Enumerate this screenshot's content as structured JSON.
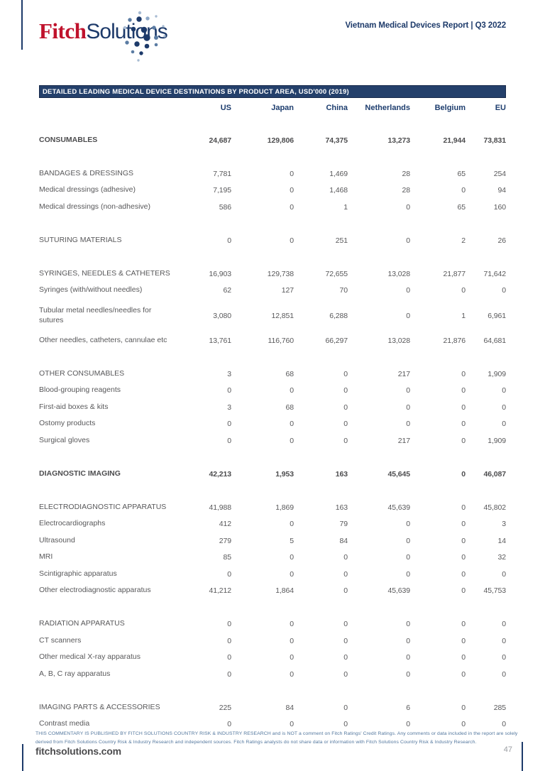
{
  "header": {
    "logo_fitch": "Fitch",
    "logo_solutions": "Solutions",
    "report_title": "Vietnam Medical Devices Report | Q3 2022"
  },
  "colors": {
    "brand_navy": "#1d3a6a",
    "brand_red": "#c0122c",
    "table_bar_navy": "#24406b",
    "body_text_gray": "#58585a",
    "disclaimer_blue": "#53779e"
  },
  "table": {
    "title": "DETAILED LEADING MEDICAL DEVICE DESTINATIONS BY PRODUCT AREA, USD'000 (2019)",
    "columns": [
      "US",
      "Japan",
      "China",
      "Netherlands",
      "Belgium",
      "EU"
    ],
    "rows": [
      {
        "type": "section",
        "label": "CONSUMABLES",
        "values": [
          "24,687",
          "129,806",
          "74,375",
          "13,273",
          "21,944",
          "73,831"
        ]
      },
      {
        "type": "spacer"
      },
      {
        "type": "subheader",
        "label": "BANDAGES & DRESSINGS",
        "values": [
          "7,781",
          "0",
          "1,469",
          "28",
          "65",
          "254"
        ]
      },
      {
        "type": "item",
        "label": "Medical dressings (adhesive)",
        "values": [
          "7,195",
          "0",
          "1,468",
          "28",
          "0",
          "94"
        ]
      },
      {
        "type": "item",
        "label": "Medical dressings (non-adhesive)",
        "values": [
          "586",
          "0",
          "1",
          "0",
          "65",
          "160"
        ]
      },
      {
        "type": "spacer"
      },
      {
        "type": "subheader",
        "label": "SUTURING MATERIALS",
        "values": [
          "0",
          "0",
          "251",
          "0",
          "2",
          "26"
        ]
      },
      {
        "type": "spacer"
      },
      {
        "type": "subheader",
        "label": "SYRINGES, NEEDLES & CATHETERS",
        "values": [
          "16,903",
          "129,738",
          "72,655",
          "13,028",
          "21,877",
          "71,642"
        ]
      },
      {
        "type": "item",
        "label": "Syringes (with/without needles)",
        "values": [
          "62",
          "127",
          "70",
          "0",
          "0",
          "0"
        ]
      },
      {
        "type": "item",
        "double": true,
        "label": "Tubular metal needles/needles for sutures",
        "values": [
          "3,080",
          "12,851",
          "6,288",
          "0",
          "1",
          "6,961"
        ]
      },
      {
        "type": "item",
        "label": "Other needles, catheters, cannulae etc",
        "values": [
          "13,761",
          "116,760",
          "66,297",
          "13,028",
          "21,876",
          "64,681"
        ]
      },
      {
        "type": "spacer"
      },
      {
        "type": "subheader",
        "label": "OTHER CONSUMABLES",
        "values": [
          "3",
          "68",
          "0",
          "217",
          "0",
          "1,909"
        ]
      },
      {
        "type": "item",
        "label": "Blood-grouping reagents",
        "values": [
          "0",
          "0",
          "0",
          "0",
          "0",
          "0"
        ]
      },
      {
        "type": "item",
        "label": "First-aid boxes & kits",
        "values": [
          "3",
          "68",
          "0",
          "0",
          "0",
          "0"
        ]
      },
      {
        "type": "item",
        "label": "Ostomy products",
        "values": [
          "0",
          "0",
          "0",
          "0",
          "0",
          "0"
        ]
      },
      {
        "type": "item",
        "label": "Surgical gloves",
        "values": [
          "0",
          "0",
          "0",
          "217",
          "0",
          "1,909"
        ]
      },
      {
        "type": "spacer"
      },
      {
        "type": "section",
        "label": "DIAGNOSTIC IMAGING",
        "values": [
          "42,213",
          "1,953",
          "163",
          "45,645",
          "0",
          "46,087"
        ]
      },
      {
        "type": "spacer"
      },
      {
        "type": "subheader",
        "label": "ELECTRODIAGNOSTIC APPARATUS",
        "values": [
          "41,988",
          "1,869",
          "163",
          "45,639",
          "0",
          "45,802"
        ]
      },
      {
        "type": "item",
        "label": "Electrocardiographs",
        "values": [
          "412",
          "0",
          "79",
          "0",
          "0",
          "3"
        ]
      },
      {
        "type": "item",
        "label": "Ultrasound",
        "values": [
          "279",
          "5",
          "84",
          "0",
          "0",
          "14"
        ]
      },
      {
        "type": "item",
        "label": "MRI",
        "values": [
          "85",
          "0",
          "0",
          "0",
          "0",
          "32"
        ]
      },
      {
        "type": "item",
        "label": "Scintigraphic apparatus",
        "values": [
          "0",
          "0",
          "0",
          "0",
          "0",
          "0"
        ]
      },
      {
        "type": "item",
        "label": "Other electrodiagnostic apparatus",
        "values": [
          "41,212",
          "1,864",
          "0",
          "45,639",
          "0",
          "45,753"
        ]
      },
      {
        "type": "spacer"
      },
      {
        "type": "subheader",
        "label": "RADIATION APPARATUS",
        "values": [
          "0",
          "0",
          "0",
          "0",
          "0",
          "0"
        ]
      },
      {
        "type": "item",
        "label": "CT scanners",
        "values": [
          "0",
          "0",
          "0",
          "0",
          "0",
          "0"
        ]
      },
      {
        "type": "item",
        "label": "Other medical X-ray apparatus",
        "values": [
          "0",
          "0",
          "0",
          "0",
          "0",
          "0"
        ]
      },
      {
        "type": "item",
        "label": "A, B, C ray apparatus",
        "values": [
          "0",
          "0",
          "0",
          "0",
          "0",
          "0"
        ]
      },
      {
        "type": "spacer"
      },
      {
        "type": "subheader",
        "label": "IMAGING PARTS & ACCESSORIES",
        "values": [
          "225",
          "84",
          "0",
          "6",
          "0",
          "285"
        ]
      },
      {
        "type": "item",
        "label": "Contrast media",
        "values": [
          "0",
          "0",
          "0",
          "0",
          "0",
          "0"
        ]
      }
    ]
  },
  "footer": {
    "disclaimer_line1": "THIS COMMENTARY IS PUBLISHED BY FITCH SOLUTIONS COUNTRY RISK & INDUSTRY RESEARCH and is NOT a comment on Fitch Ratings' Credit Ratings. Any comments or data included in the report are solely",
    "disclaimer_line2": "derived from Fitch Solutions Country Risk & Industry Research and independent sources. Fitch Ratings analysts do not share data or information with Fitch Solutions Country Risk & Industry Research.",
    "site": "fitchsolutions.com",
    "page_number": "47"
  }
}
